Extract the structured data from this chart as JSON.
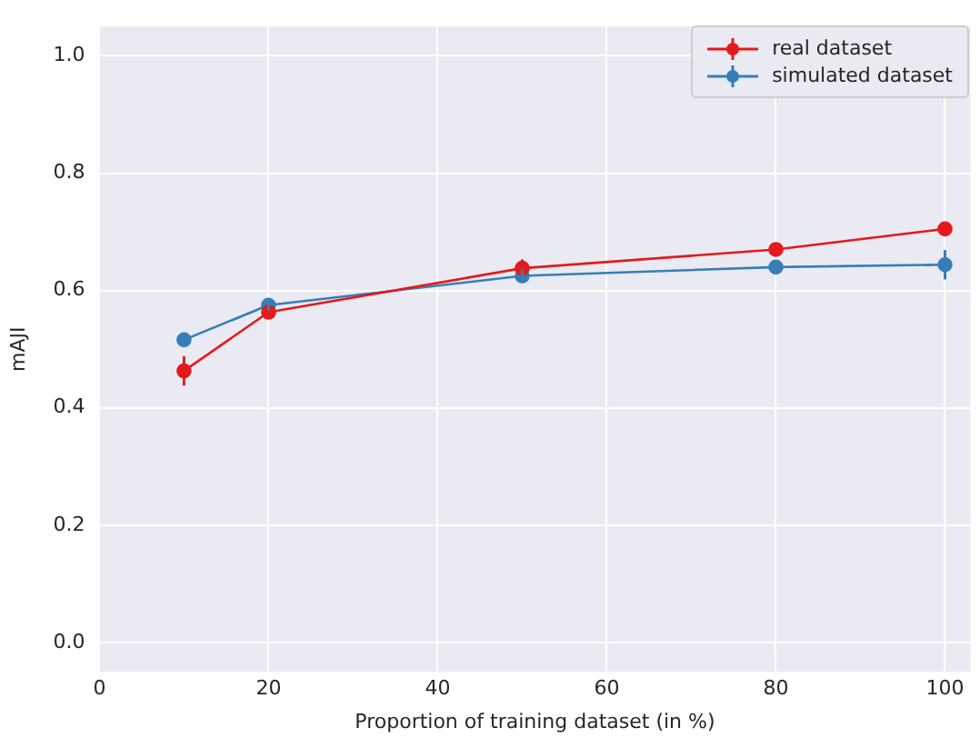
{
  "chart_data": {
    "type": "line",
    "xlabel": "Proportion of training dataset (in %)",
    "ylabel": "mAJI",
    "x": [
      10,
      20,
      50,
      80,
      100
    ],
    "series": [
      {
        "name": "real dataset",
        "color": "#e41a1c",
        "values": [
          0.463,
          0.563,
          0.638,
          0.67,
          0.705
        ],
        "errors": [
          0.025,
          0.01,
          0.015,
          0.008,
          0.006
        ]
      },
      {
        "name": "simulated dataset",
        "color": "#377eb8",
        "values": [
          0.516,
          0.575,
          0.625,
          0.64,
          0.644
        ],
        "errors": [
          0.01,
          0.01,
          0.012,
          0.012,
          0.025
        ]
      }
    ],
    "xlim": [
      0,
      103
    ],
    "xticks": [
      0,
      20,
      40,
      60,
      80,
      100
    ],
    "ylim": [
      -0.05,
      1.05
    ],
    "yticks": [
      {
        "value": 0,
        "label": "0.0"
      },
      0.2,
      0.4,
      0.6,
      0.8,
      {
        "value": 1,
        "label": "1.0"
      }
    ],
    "grid": true,
    "legend": "top right",
    "marker": "circle",
    "line_style": "solid"
  }
}
